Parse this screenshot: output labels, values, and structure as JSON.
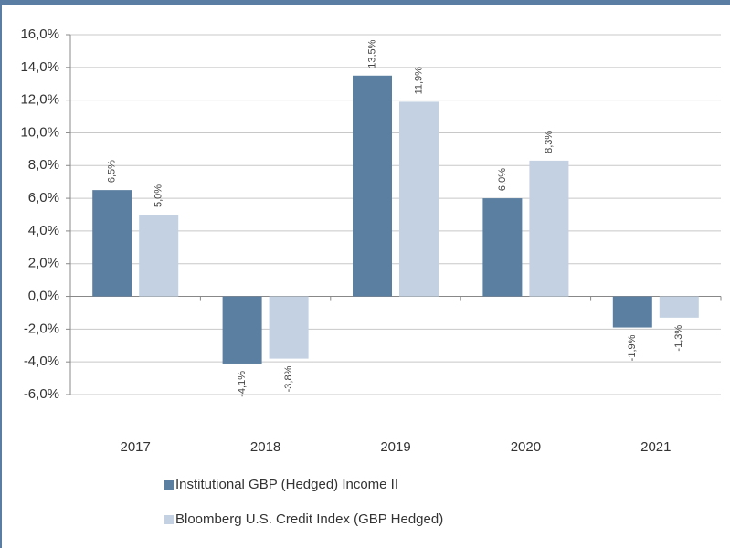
{
  "chart_data": {
    "type": "bar",
    "categories": [
      "2017",
      "2018",
      "2019",
      "2020",
      "2021"
    ],
    "series": [
      {
        "name": "Institutional GBP (Hedged) Income II",
        "color": "#5b7fa1",
        "values": [
          6.5,
          -4.1,
          13.5,
          6.0,
          -1.9
        ],
        "value_labels": [
          "6,5%",
          "-4,1%",
          "13,5%",
          "6,0%",
          "-1,9%"
        ]
      },
      {
        "name": "Bloomberg U.S. Credit Index (GBP Hedged)",
        "color": "#c3d1e2",
        "values": [
          5.0,
          -3.8,
          11.9,
          8.3,
          -1.3
        ],
        "value_labels": [
          "5,0%",
          "-3,8%",
          "11,9%",
          "8,3%",
          "-1,3%"
        ]
      }
    ],
    "ylim": [
      -6,
      16
    ],
    "yticks": [
      {
        "value": -6,
        "label": "-6,0%"
      },
      {
        "value": -4,
        "label": "-4,0%"
      },
      {
        "value": -2,
        "label": "-2,0%"
      },
      {
        "value": 0,
        "label": "0,0%"
      },
      {
        "value": 2,
        "label": "2,0%"
      },
      {
        "value": 4,
        "label": "4,0%"
      },
      {
        "value": 6,
        "label": "6,0%"
      },
      {
        "value": 8,
        "label": "8,0%"
      },
      {
        "value": 10,
        "label": "10,0%"
      },
      {
        "value": 12,
        "label": "12,0%"
      },
      {
        "value": 14,
        "label": "14,0%"
      },
      {
        "value": 16,
        "label": "16,0%"
      }
    ],
    "grid": true,
    "legend": "bottom"
  }
}
